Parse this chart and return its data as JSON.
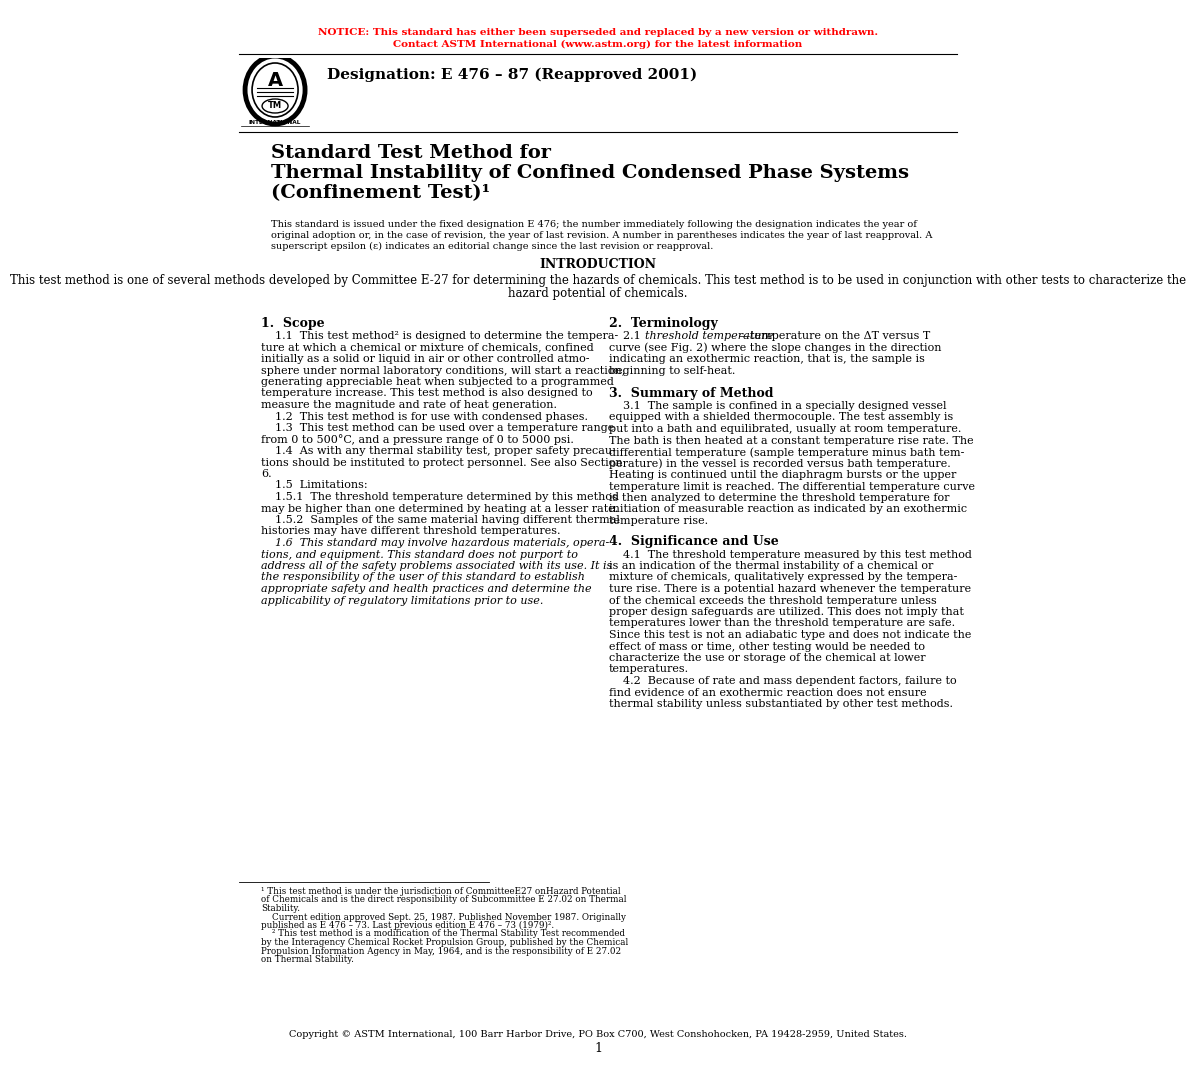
{
  "notice_line1": "NOTICE: This standard has either been superseded and replaced by a new version or withdrawn.",
  "notice_line2": "Contact ASTM International (www.astm.org) for the latest information",
  "notice_color": "#FF0000",
  "notice_fontsize": 7.5,
  "designation": "Designation: E 476 – 87 (Reapproved 2001)",
  "designation_fontsize": 11,
  "title_line1": "Standard Test Method for",
  "title_line2": "Thermal Instability of Confined Condensed Phase Systems",
  "title_line3": "(Confinement Test)¹",
  "title_fontsize": 14,
  "intro_header": "INTRODUCTION",
  "intro_fontsize": 8.5,
  "bg_color": "#FFFFFF",
  "text_color": "#000000",
  "body_fontsize": 8.0,
  "preamble_lines": [
    "This standard is issued under the fixed designation E 476; the number immediately following the designation indicates the year of",
    "original adoption or, in the case of revision, the year of last revision. A number in parentheses indicates the year of last reapproval. A",
    "superscript epsilon (ε) indicates an editorial change since the last revision or reapproval."
  ],
  "intro_lines": [
    "This test method is one of several methods developed by Committee E-27 for determining the hazards of chemicals. This test method is to be used in conjunction with other tests to characterize the",
    "hazard potential of chemicals."
  ],
  "col1_header": "1.  Scope",
  "col1_lines": [
    "    1.1  This test method² is designed to determine the tempera-",
    "ture at which a chemical or mixture of chemicals, confined",
    "initially as a solid or liquid in air or other controlled atmo-",
    "sphere under normal laboratory conditions, will start a reaction,",
    "generating appreciable heat when subjected to a programmed",
    "temperature increase. This test method is also designed to",
    "measure the magnitude and rate of heat generation.",
    "    1.2  This test method is for use with condensed phases.",
    "    1.3  This test method can be used over a temperature range",
    "from 0 to 500°C, and a pressure range of 0 to 5000 psi.",
    "    1.4  As with any thermal stability test, proper safety precau-",
    "tions should be instituted to protect personnel. See also Section",
    "6.",
    "    1.5  Limitations:",
    "    1.5.1  The threshold temperature determined by this method",
    "may be higher than one determined by heating at a lesser rate.",
    "    1.5.2  Samples of the same material having different thermal",
    "histories may have different threshold temperatures.",
    "    1.6  This standard may involve hazardous materials, opera-",
    "tions, and equipment. This standard does not purport to",
    "address all of the safety problems associated with its use. It is",
    "the responsibility of the user of this standard to establish",
    "appropriate safety and health practices and determine the",
    "applicability of regulatory limitations prior to use."
  ],
  "col1_italic_indices": [
    18,
    19,
    20,
    21,
    22,
    23
  ],
  "col2_header": "2.  Terminology",
  "col2_sec2_lines": [
    "beginning to self-heat."
  ],
  "col2_sec3_header": "3.  Summary of Method",
  "col2_sec3_lines": [
    "    3.1  The sample is confined in a specially designed vessel",
    "equipped with a shielded thermocouple. The test assembly is",
    "put into a bath and equilibrated, usually at room temperature.",
    "The bath is then heated at a constant temperature rise rate. The",
    "differential temperature (sample temperature minus bath tem-",
    "perature) in the vessel is recorded versus bath temperature.",
    "Heating is continued until the diaphragm bursts or the upper",
    "temperature limit is reached. The differential temperature curve",
    "is then analyzed to determine the threshold temperature for",
    "initiation of measurable reaction as indicated by an exothermic",
    "temperature rise."
  ],
  "col2_sec4_header": "4.  Significance and Use",
  "col2_sec4_lines": [
    "    4.1  The threshold temperature measured by this test method",
    "is an indication of the thermal instability of a chemical or",
    "mixture of chemicals, qualitatively expressed by the tempera-",
    "ture rise. There is a potential hazard whenever the temperature",
    "of the chemical exceeds the threshold temperature unless",
    "proper design safeguards are utilized. This does not imply that",
    "temperatures lower than the threshold temperature are safe.",
    "Since this test is not an adiabatic type and does not indicate the",
    "effect of mass or time, other testing would be needed to",
    "characterize the use or storage of the chemical at lower",
    "temperatures.",
    "    4.2  Because of rate and mass dependent factors, failure to",
    "find evidence of an exothermic reaction does not ensure",
    "thermal stability unless substantiated by other test methods."
  ],
  "footnote_lines": [
    "¹ This test method is under the jurisdiction of CommitteeE27 onHazard Potential",
    "of Chemicals and is the direct responsibility of Subcommittee E 27.02 on Thermal",
    "Stability.",
    "    Current edition approved Sept. 25, 1987. Published November 1987. Originally",
    "published as E 476 – 73. Last previous edition E 476 – 73 (1979)².",
    "    ² This test method is a modification of the Thermal Stability Test recommended",
    "by the Interagency Chemical Rocket Propulsion Group, published by the Chemical",
    "Propulsion Information Agency in May, 1964, and is the responsibility of E 27.02",
    "on Thermal Stability."
  ],
  "copyright": "Copyright © ASTM International, 100 Barr Harbor Drive, PO Box C700, West Conshohocken, PA 19428-2959, United States.",
  "page_num": "1"
}
